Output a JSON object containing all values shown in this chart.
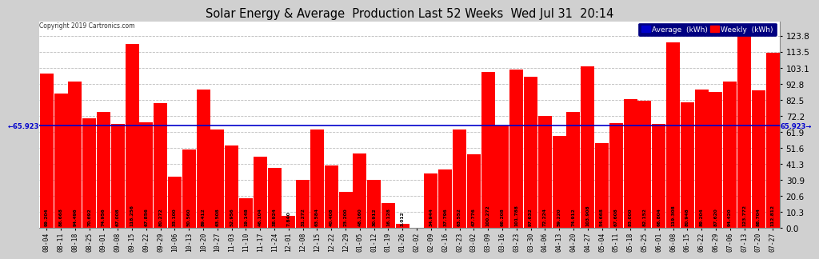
{
  "title": "Solar Energy & Average  Production Last 52 Weeks  Wed Jul 31  20:14",
  "copyright": "Copyright 2019 Cartronics.com",
  "average_line": 65.923,
  "bar_color": "#ff0000",
  "average_line_color": "#0000cc",
  "background_color": "#d0d0d0",
  "plot_bg_color": "#ffffff",
  "grid_color": "#bbbbbb",
  "ylim": [
    0,
    133
  ],
  "yticks": [
    0.0,
    10.3,
    20.6,
    30.9,
    41.3,
    51.6,
    61.9,
    72.2,
    82.5,
    92.8,
    103.1,
    113.5,
    123.8
  ],
  "legend_avg_color": "#0000cc",
  "legend_weekly_color": "#ff0000",
  "categories": [
    "08-04",
    "08-11",
    "08-18",
    "08-25",
    "09-01",
    "09-08",
    "09-15",
    "09-22",
    "09-29",
    "10-06",
    "10-13",
    "10-20",
    "10-27",
    "11-03",
    "11-10",
    "11-17",
    "11-24",
    "12-01",
    "12-08",
    "12-15",
    "12-22",
    "12-29",
    "01-05",
    "01-12",
    "01-19",
    "01-26",
    "02-02",
    "02-09",
    "02-16",
    "02-23",
    "03-02",
    "03-09",
    "03-16",
    "03-23",
    "03-30",
    "04-06",
    "04-13",
    "04-20",
    "04-27",
    "05-04",
    "05-11",
    "05-18",
    "05-25",
    "06-01",
    "06-08",
    "06-15",
    "06-22",
    "06-29",
    "07-06",
    "07-13",
    "07-20",
    "07-27"
  ],
  "values": [
    99.204,
    86.668,
    94.496,
    70.692,
    74.956,
    67.008,
    118.256,
    67.856,
    80.272,
    33.1,
    50.56,
    89.412,
    63.508,
    52.956,
    19.148,
    46.104,
    38.924,
    7.84,
    31.272,
    63.584,
    40.408,
    23.2,
    48.16,
    30.912,
    16.128,
    3.012,
    0.0,
    34.944,
    37.796,
    63.552,
    47.776,
    100.272,
    66.208,
    101.788,
    97.632,
    72.224,
    59.22,
    74.912,
    103.908,
    54.668,
    67.608,
    83.0,
    82.152,
    66.804,
    119.308,
    80.948,
    89.204,
    87.62,
    94.42,
    123.772,
    88.704,
    112.812
  ],
  "avg_label": "65.9·23",
  "left_avg_text": "← 65.9·23",
  "right_avg_text": "65.9·23 →"
}
